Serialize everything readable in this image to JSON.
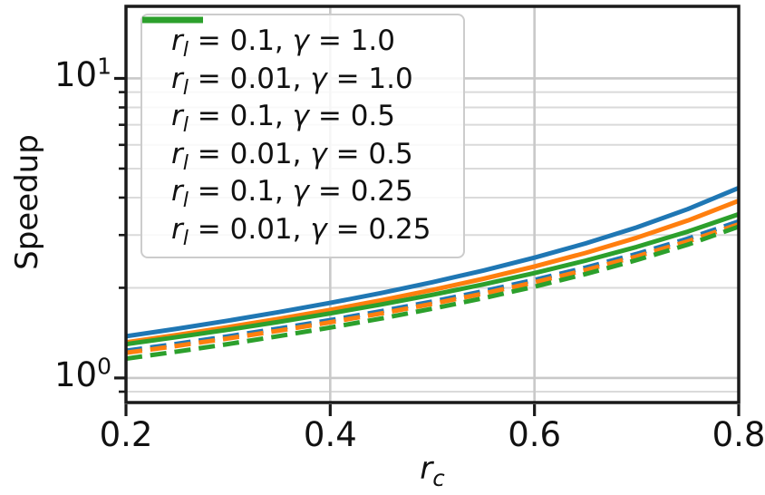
{
  "figure": {
    "background": "#ffffff",
    "text_color": "#111111",
    "spine_color": "#1a1a1a"
  },
  "chart_data": {
    "type": "line",
    "title": "",
    "ylabel": "Speedup",
    "xlabel": {
      "var": "r",
      "sub": "c"
    },
    "x_axis": {
      "min": 0.2,
      "max": 0.8,
      "ticks": [
        0.2,
        0.4,
        0.6,
        0.8
      ],
      "tick_labels": [
        "0.2",
        "0.4",
        "0.6",
        "0.8"
      ],
      "grid_ticks": [
        0.4,
        0.6
      ]
    },
    "y_axis": {
      "scale": "log",
      "min": 0.828,
      "max": 17.4,
      "major_ticks": [
        1,
        10
      ],
      "major_tick_labels": [
        {
          "base": "10",
          "exp": "0",
          "value": 1
        },
        {
          "base": "10",
          "exp": "1",
          "value": 10
        }
      ],
      "minor_ticks": [
        0.9,
        2,
        3,
        4,
        5,
        6,
        7,
        8,
        9
      ]
    },
    "grid": {
      "major_color": "#c9c9c9",
      "minor_color": "#dadada",
      "major_width": 2.6,
      "minor_width": 2.0
    },
    "x": [
      0.2,
      0.25,
      0.3,
      0.35,
      0.4,
      0.45,
      0.5,
      0.55,
      0.6,
      0.65,
      0.7,
      0.75,
      0.8
    ],
    "series": [
      {
        "name": "r_l = 0.1, γ = 1.0",
        "rl": "0.1",
        "gamma": "1.0",
        "color": "#1f77b4",
        "dash": "solid",
        "values": [
          1.378,
          1.46,
          1.553,
          1.66,
          1.781,
          1.922,
          2.088,
          2.284,
          2.521,
          2.813,
          3.18,
          3.66,
          4.309
        ]
      },
      {
        "name": "r_l = 0.01, γ = 1.0",
        "rl": "0.01",
        "gamma": "1.0",
        "color": "#1f77b4",
        "dash": "dashed",
        "values": [
          1.233,
          1.301,
          1.377,
          1.463,
          1.56,
          1.671,
          1.799,
          1.949,
          2.125,
          2.336,
          2.594,
          2.917,
          3.33
        ]
      },
      {
        "name": "r_l = 0.1, γ = 0.5",
        "rl": "0.1",
        "gamma": "0.5",
        "color": "#ff7f0e",
        "dash": "solid",
        "values": [
          1.315,
          1.392,
          1.478,
          1.576,
          1.688,
          1.817,
          1.967,
          2.144,
          2.356,
          2.615,
          2.938,
          3.352,
          3.902
        ]
      },
      {
        "name": "r_l = 0.01, γ = 0.5",
        "rl": "0.01",
        "gamma": "0.5",
        "color": "#ff7f0e",
        "dash": "dashed",
        "values": [
          1.213,
          1.28,
          1.355,
          1.439,
          1.534,
          1.643,
          1.768,
          1.914,
          2.086,
          2.292,
          2.544,
          2.857,
          3.258
        ]
      },
      {
        "name": "r_l = 0.1, γ = 0.25",
        "rl": "0.1",
        "gamma": "0.25",
        "color": "#2ca02c",
        "dash": "solid",
        "values": [
          1.297,
          1.369,
          1.449,
          1.54,
          1.643,
          1.76,
          1.895,
          2.053,
          2.24,
          2.464,
          2.738,
          3.08,
          3.52
        ]
      },
      {
        "name": "r_l = 0.01, γ = 0.25",
        "rl": "0.01",
        "gamma": "0.25",
        "color": "#2ca02c",
        "dash": "dashed",
        "values": [
          1.16,
          1.225,
          1.298,
          1.38,
          1.473,
          1.58,
          1.703,
          1.847,
          2.017,
          2.222,
          2.475,
          2.785,
          3.2
        ]
      }
    ],
    "legend": {
      "position": "upper left",
      "var_r": "r",
      "var_r_sub": "l",
      "var_gamma": "γ",
      "eq": " = ",
      "sep": ", "
    },
    "line_width": 5,
    "curve_dash_pattern": "18 9",
    "legend_dash_pattern": "17 9 17 9 3 9"
  }
}
